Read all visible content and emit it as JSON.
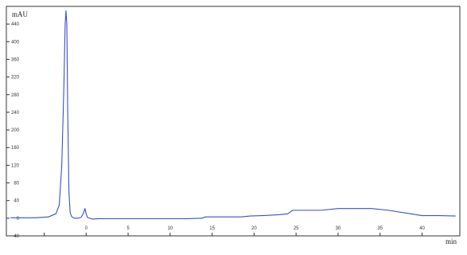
{
  "chart_data": {
    "type": "line",
    "title": "",
    "signal_label": "",
    "xlabel": "min",
    "ylabel": "mAU",
    "xlim": [
      -9.5,
      44.5
    ],
    "ylim": [
      -40,
      480
    ],
    "x_ticks": [
      -5,
      0,
      5,
      10,
      15,
      20,
      25,
      30,
      35,
      40
    ],
    "y_ticks": [
      -40,
      0,
      40,
      80,
      120,
      160,
      200,
      240,
      280,
      320,
      360,
      400,
      440
    ],
    "x_tick_labels": [
      "",
      "0",
      "5",
      "10",
      "15",
      "20",
      "25",
      "30",
      "35",
      "40"
    ],
    "y_tick_labels": [
      "-40",
      "0",
      "40",
      "80",
      "120",
      "160",
      "200",
      "240",
      "280",
      "320",
      "360",
      "400",
      "440"
    ],
    "grid": false,
    "color": "#3a4fc9",
    "series": [
      {
        "x": [
          -9.0,
          -6.0,
          -4.5,
          -3.6,
          -3.2,
          -2.9,
          -2.65,
          -2.5,
          -2.4,
          -2.3,
          -2.2,
          -2.05,
          -1.9,
          -1.7,
          -1.4,
          -1.0,
          -0.6,
          -0.3,
          -0.15,
          0.0,
          0.15,
          0.4,
          0.8,
          1.5,
          3.0,
          5.0,
          8.0,
          10.0,
          12.0,
          13.8,
          14.2,
          16.0,
          18.5,
          19.5,
          21.0,
          23.0,
          24.0,
          24.6,
          25.5,
          28.0,
          30.0,
          32.0,
          34.0,
          36.0,
          38.0,
          40.0,
          42.0,
          44.0
        ],
        "y": [
          1,
          1,
          3,
          10,
          30,
          120,
          300,
          440,
          470,
          440,
          250,
          60,
          12,
          3,
          0,
          0,
          2,
          12,
          22,
          10,
          2,
          0,
          -2,
          -1,
          -1,
          -1,
          -1,
          -1,
          -1,
          0,
          3,
          3,
          3,
          5,
          6,
          8,
          10,
          18,
          18,
          18,
          22,
          22,
          22,
          18,
          12,
          6,
          6,
          5
        ]
      }
    ]
  }
}
